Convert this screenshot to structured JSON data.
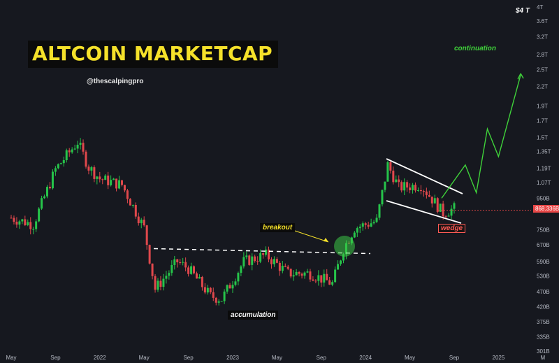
{
  "title": "ALTCOIN MARKETCAP",
  "handle": "@thescalpingpro",
  "annotations": {
    "continuation": "continuation",
    "breakout": "breakout",
    "accumulation": "accumulation",
    "wedge": "wedge",
    "badge": "$4 T"
  },
  "current_price_label": "868.336B",
  "colors": {
    "up": "#26c44a",
    "down": "#e0484c",
    "title": "#f5e12a",
    "projection": "#3fd23a",
    "background": "#16181f"
  },
  "chart_data": {
    "type": "candlestick",
    "y_scale": "log",
    "y_ticks": [
      "4T",
      "3.6T",
      "3.2T",
      "2.8T",
      "2.5T",
      "2.2T",
      "1.9T",
      "1.7T",
      "1.5T",
      "1.35T",
      "1.19T",
      "1.07T",
      "950B",
      "868.336B",
      "750B",
      "670B",
      "590B",
      "530B",
      "470B",
      "420B",
      "375B",
      "335B",
      "301B"
    ],
    "x_ticks": [
      "May",
      "Sep",
      "2022",
      "May",
      "Sep",
      "2023",
      "May",
      "Sep",
      "2024",
      "May",
      "Sep",
      "2025",
      "M"
    ],
    "series_approx_close_usd_b": [
      [
        "May 2021",
        820
      ],
      [
        "Jul 2021",
        780
      ],
      [
        "Sep 2021",
        1180
      ],
      [
        "Nov 2021",
        1450
      ],
      [
        "Dec 2021",
        1200
      ],
      [
        "Jan 2022",
        1100
      ],
      [
        "Mar 2022",
        1050
      ],
      [
        "May 2022",
        760
      ],
      [
        "Jun 2022",
        480
      ],
      [
        "Aug 2022",
        590
      ],
      [
        "Sep 2022",
        560
      ],
      [
        "Nov 2022",
        455
      ],
      [
        "Dec 2022",
        445
      ],
      [
        "Feb 2023",
        590
      ],
      [
        "Apr 2023",
        620
      ],
      [
        "Jun 2023",
        540
      ],
      [
        "Aug 2023",
        540
      ],
      [
        "Oct 2023",
        500
      ],
      [
        "Nov 2023",
        650
      ],
      [
        "Dec 2023",
        760
      ],
      [
        "Feb 2024",
        800
      ],
      [
        "Mar 2024",
        1220
      ],
      [
        "Apr 2024",
        1030
      ],
      [
        "Jun 2024",
        1050
      ],
      [
        "Aug 2024",
        850
      ],
      [
        "Sep 2024",
        880
      ]
    ],
    "accumulation_resistance_usd_b": 640,
    "projection_path_usd_b": [
      [
        "Sep 2024",
        950
      ],
      [
        "Oct 2024",
        1220
      ],
      [
        "Nov 2024",
        990
      ],
      [
        "Dec 2024",
        1600
      ],
      [
        "Jan 2025",
        1300
      ],
      [
        "Mar 2025",
        2400
      ]
    ]
  }
}
